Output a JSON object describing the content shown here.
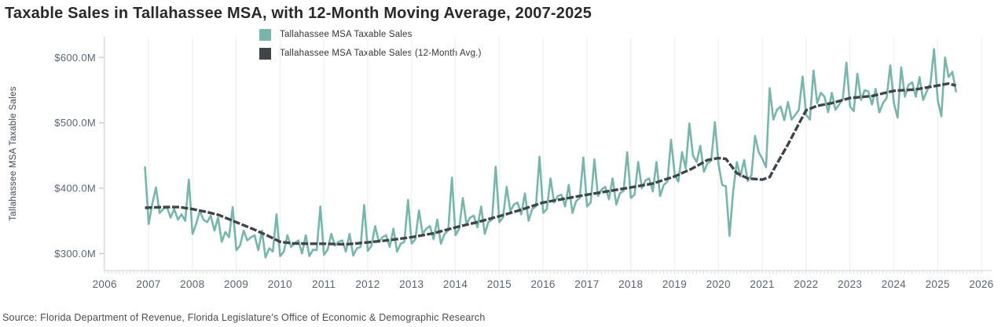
{
  "title": "Taxable Sales in Tallahassee MSA, with 12-Month Moving Average, 2007-2025",
  "source": "Source: Florida Department of Revenue, Florida Legislature's Office of Economic & Demographic Research",
  "colors": {
    "monthly_series": "#78b5ab",
    "avg_series": "#3e4447",
    "gridline": "#eef0f3",
    "axis_line": "#d8dade",
    "tick_label": "#5a6370",
    "title_text": "#28292b"
  },
  "legend": [
    {
      "label": "Tallahassee MSA Taxable Sales",
      "color": "#78b5ab"
    },
    {
      "label": "Tallahassee MSA Taxable Sales (12-Month Avg.)",
      "color": "#3e4447"
    }
  ],
  "y_axis": {
    "label": "Tallahassee MSA Taxable Sales",
    "ticks": [
      {
        "text": "$600.0M",
        "value": 600
      },
      {
        "text": "$500.0M",
        "value": 500
      },
      {
        "text": "$400.0M",
        "value": 400
      },
      {
        "text": "$300.0M",
        "value": 300
      }
    ]
  },
  "x_axis": {
    "ticks": [
      2006,
      2007,
      2008,
      2009,
      2010,
      2011,
      2012,
      2013,
      2014,
      2015,
      2016,
      2017,
      2018,
      2019,
      2020,
      2021,
      2022,
      2023,
      2024,
      2025,
      2026
    ]
  },
  "chart_data": {
    "type": "line",
    "title": "Taxable Sales in Tallahassee MSA, with 12-Month Moving Average, 2007-2025",
    "xlabel": "",
    "ylabel": "Tallahassee MSA Taxable Sales",
    "x_range": [
      2006,
      2026
    ],
    "y_range_musd": [
      270,
      630
    ],
    "grid": "vertical-yearly-only",
    "legend_position": "top-center",
    "units": "millions of USD, monthly",
    "series": [
      {
        "name": "Tallahassee MSA Taxable Sales",
        "color": "#78b5ab",
        "style": "solid",
        "start_month": "2006-12",
        "end_month": "2025-06",
        "freq": "monthly",
        "values_musd": [
          432,
          345,
          376,
          401,
          362,
          368,
          371,
          355,
          368,
          352,
          360,
          350,
          413,
          330,
          345,
          365,
          352,
          348,
          358,
          335,
          355,
          318,
          333,
          325,
          371,
          305,
          312,
          335,
          320,
          325,
          328,
          305,
          335,
          294,
          308,
          303,
          360,
          296,
          303,
          328,
          310,
          316,
          320,
          300,
          328,
          296,
          306,
          305,
          372,
          298,
          306,
          330,
          312,
          318,
          320,
          303,
          330,
          297,
          308,
          310,
          374,
          304,
          312,
          342,
          318,
          325,
          328,
          310,
          338,
          303,
          315,
          318,
          382,
          315,
          322,
          366,
          330,
          338,
          342,
          322,
          352,
          315,
          330,
          335,
          416,
          328,
          338,
          385,
          345,
          355,
          358,
          340,
          372,
          330,
          348,
          352,
          433,
          348,
          355,
          402,
          365,
          375,
          378,
          360,
          392,
          350,
          368,
          372,
          448,
          362,
          368,
          415,
          378,
          388,
          390,
          372,
          405,
          362,
          380,
          385,
          447,
          372,
          378,
          444,
          388,
          398,
          402,
          383,
          415,
          375,
          392,
          396,
          455,
          385,
          390,
          440,
          400,
          412,
          415,
          395,
          440,
          388,
          405,
          410,
          474,
          420,
          410,
          455,
          430,
          499,
          450,
          440,
          465,
          425,
          438,
          442,
          501,
          437,
          405,
          403,
          327,
          395,
          440,
          418,
          443,
          411,
          420,
          480,
          455,
          445,
          432,
          553,
          505,
          520,
          525,
          504,
          532,
          505,
          512,
          520,
          571,
          512,
          505,
          580,
          530,
          546,
          540,
          516,
          546,
          520,
          528,
          536,
          592,
          525,
          518,
          575,
          535,
          550,
          548,
          528,
          552,
          516,
          530,
          538,
          588,
          530,
          508,
          585,
          540,
          558,
          562,
          540,
          570,
          535,
          548,
          560,
          613,
          535,
          510,
          600,
          570,
          578,
          548
        ]
      },
      {
        "name": "Tallahassee MSA Taxable Sales (12-Month Avg.)",
        "color": "#3e4447",
        "style": "dashed",
        "points_year_value": [
          [
            2006.92,
            370
          ],
          [
            2007.3,
            371
          ],
          [
            2007.7,
            371
          ],
          [
            2008.0,
            368
          ],
          [
            2008.3,
            364
          ],
          [
            2008.6,
            359
          ],
          [
            2009.0,
            348
          ],
          [
            2009.4,
            337
          ],
          [
            2009.7,
            328
          ],
          [
            2010.0,
            318
          ],
          [
            2010.3,
            315.5
          ],
          [
            2010.7,
            315
          ],
          [
            2011.0,
            315
          ],
          [
            2011.5,
            314
          ],
          [
            2012.0,
            317
          ],
          [
            2012.5,
            320.5
          ],
          [
            2013.0,
            325
          ],
          [
            2013.5,
            331
          ],
          [
            2014.0,
            340
          ],
          [
            2014.5,
            348
          ],
          [
            2015.0,
            357
          ],
          [
            2015.5,
            367
          ],
          [
            2016.0,
            378
          ],
          [
            2016.5,
            384
          ],
          [
            2017.0,
            390
          ],
          [
            2017.5,
            395.5
          ],
          [
            2018.0,
            401
          ],
          [
            2018.5,
            407
          ],
          [
            2019.0,
            418
          ],
          [
            2019.4,
            430
          ],
          [
            2019.75,
            443
          ],
          [
            2020.0,
            446
          ],
          [
            2020.17,
            445
          ],
          [
            2020.42,
            423
          ],
          [
            2020.67,
            415
          ],
          [
            2021.0,
            413
          ],
          [
            2021.17,
            417
          ],
          [
            2021.33,
            437
          ],
          [
            2021.58,
            466
          ],
          [
            2021.83,
            498
          ],
          [
            2022.0,
            519
          ],
          [
            2022.25,
            526
          ],
          [
            2022.58,
            530
          ],
          [
            2023.0,
            538
          ],
          [
            2023.5,
            541
          ],
          [
            2024.0,
            549
          ],
          [
            2024.5,
            551
          ],
          [
            2024.83,
            555
          ],
          [
            2025.08,
            558
          ],
          [
            2025.25,
            560
          ],
          [
            2025.42,
            557
          ]
        ]
      }
    ]
  }
}
